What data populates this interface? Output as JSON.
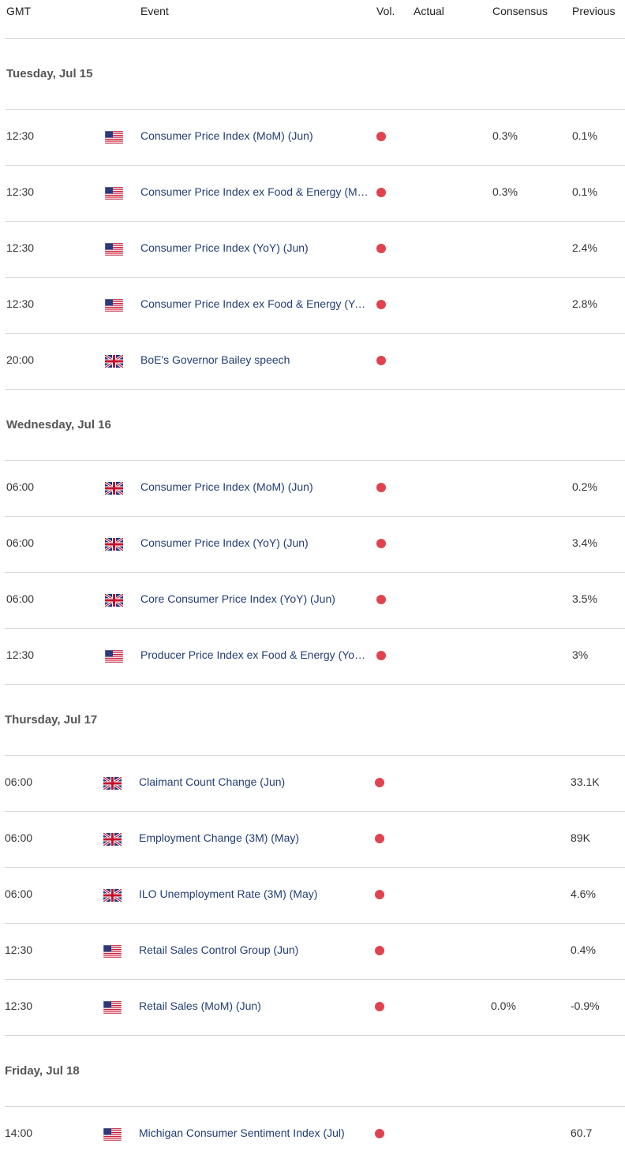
{
  "headers": {
    "gmt": "GMT",
    "event": "Event",
    "vol": "Vol.",
    "actual": "Actual",
    "consensus": "Consensus",
    "previous": "Previous"
  },
  "colors": {
    "vol_high": "#e0434f",
    "event_text": "#223d75",
    "divider": "#d6d6d6"
  },
  "days": [
    {
      "label": "Tuesday, Jul 15",
      "events": [
        {
          "time": "12:30",
          "flag": "us-flag-icon",
          "event": "Consumer Price Index (MoM) (Jun)",
          "actual": "",
          "consensus": "0.3%",
          "previous": "0.1%"
        },
        {
          "time": "12:30",
          "flag": "us-flag-icon",
          "event": "Consumer Price Index ex Food & Energy (MoM) (Jun)",
          "actual": "",
          "consensus": "0.3%",
          "previous": "0.1%"
        },
        {
          "time": "12:30",
          "flag": "us-flag-icon",
          "event": "Consumer Price Index (YoY) (Jun)",
          "actual": "",
          "consensus": "",
          "previous": "2.4%"
        },
        {
          "time": "12:30",
          "flag": "us-flag-icon",
          "event": "Consumer Price Index ex Food & Energy (YoY) (Jun)",
          "actual": "",
          "consensus": "",
          "previous": "2.8%"
        },
        {
          "time": "20:00",
          "flag": "uk-flag-icon",
          "event": "BoE's Governor Bailey speech",
          "actual": "",
          "consensus": "",
          "previous": ""
        }
      ]
    },
    {
      "label": "Wednesday, Jul 16",
      "events": [
        {
          "time": "06:00",
          "flag": "uk-flag-icon",
          "event": "Consumer Price Index (MoM) (Jun)",
          "actual": "",
          "consensus": "",
          "previous": "0.2%"
        },
        {
          "time": "06:00",
          "flag": "uk-flag-icon",
          "event": "Consumer Price Index (YoY) (Jun)",
          "actual": "",
          "consensus": "",
          "previous": "3.4%"
        },
        {
          "time": "06:00",
          "flag": "uk-flag-icon",
          "event": "Core Consumer Price Index (YoY) (Jun)",
          "actual": "",
          "consensus": "",
          "previous": "3.5%"
        },
        {
          "time": "12:30",
          "flag": "us-flag-icon",
          "event": "Producer Price Index ex Food & Energy (YoY) (Jun)",
          "actual": "",
          "consensus": "",
          "previous": "3%"
        }
      ]
    },
    {
      "label": "Thursday, Jul 17",
      "events": [
        {
          "time": "06:00",
          "flag": "uk-flag-icon",
          "event": "Claimant Count Change (Jun)",
          "actual": "",
          "consensus": "",
          "previous": "33.1K"
        },
        {
          "time": "06:00",
          "flag": "uk-flag-icon",
          "event": "Employment Change (3M) (May)",
          "actual": "",
          "consensus": "",
          "previous": "89K"
        },
        {
          "time": "06:00",
          "flag": "uk-flag-icon",
          "event": "ILO Unemployment Rate (3M) (May)",
          "actual": "",
          "consensus": "",
          "previous": "4.6%"
        },
        {
          "time": "12:30",
          "flag": "us-flag-icon",
          "event": "Retail Sales Control Group (Jun)",
          "actual": "",
          "consensus": "",
          "previous": "0.4%"
        },
        {
          "time": "12:30",
          "flag": "us-flag-icon",
          "event": "Retail Sales (MoM) (Jun)",
          "actual": "",
          "consensus": "0.0%",
          "previous": "-0.9%"
        }
      ]
    },
    {
      "label": "Friday, Jul 18",
      "events": [
        {
          "time": "14:00",
          "flag": "us-flag-icon",
          "event": "Michigan Consumer Sentiment Index (Jul)",
          "actual": "",
          "consensus": "",
          "previous": "60.7"
        }
      ]
    }
  ]
}
